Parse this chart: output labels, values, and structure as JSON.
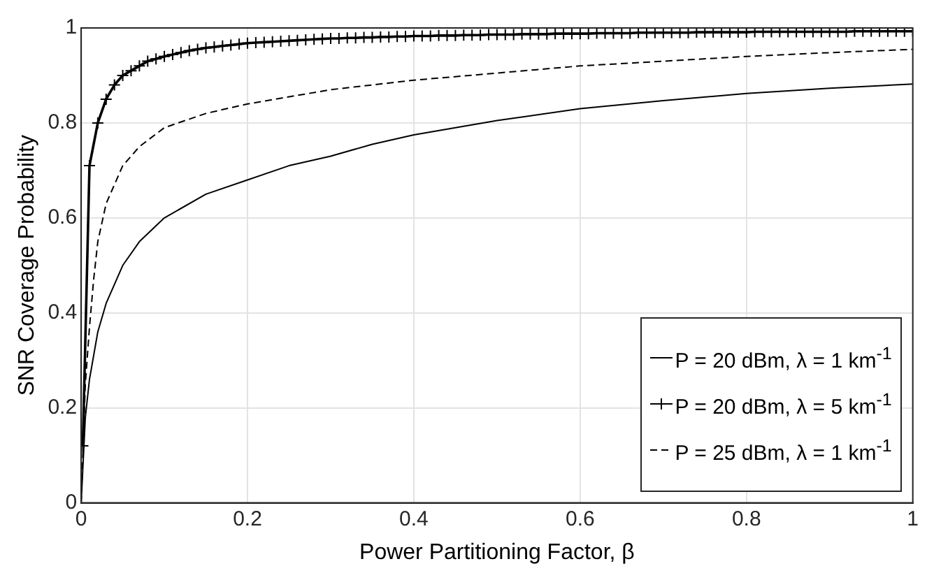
{
  "chart_data": {
    "type": "line",
    "xlabel": "Power Partitioning Factor, β",
    "ylabel": "SNR Coverage Probability",
    "xlim": [
      0,
      1
    ],
    "ylim": [
      0,
      1
    ],
    "xticks": [
      0,
      0.2,
      0.4,
      0.6,
      0.8,
      1
    ],
    "yticks": [
      0,
      0.2,
      0.4,
      0.6,
      0.8,
      1
    ],
    "grid": true,
    "legend": "bottom right",
    "series": [
      {
        "name": "P = 20 dBm, λ = 1 km$^{-1}$",
        "color": "#000000",
        "line_style": "solid",
        "marker": "none",
        "x": [
          0,
          0.005,
          0.01,
          0.02,
          0.03,
          0.05,
          0.07,
          0.1,
          0.15,
          0.2,
          0.25,
          0.3,
          0.35,
          0.4,
          0.5,
          0.6,
          0.7,
          0.8,
          0.9,
          1
        ],
        "values": [
          0,
          0.18,
          0.26,
          0.36,
          0.42,
          0.5,
          0.55,
          0.6,
          0.65,
          0.68,
          0.71,
          0.73,
          0.755,
          0.775,
          0.805,
          0.83,
          0.847,
          0.862,
          0.873,
          0.882
        ]
      },
      {
        "name": "P = 20 dBm, λ = 5 km$^{-1}$",
        "color": "#000000",
        "line_style": "solid",
        "marker": "cross",
        "x": [
          0.002,
          0.01,
          0.02,
          0.03,
          0.04,
          0.05,
          0.06,
          0.07,
          0.08,
          0.09,
          0.1,
          0.11,
          0.12,
          0.13,
          0.14,
          0.15,
          0.16,
          0.17,
          0.18,
          0.19,
          0.2,
          0.21,
          0.22,
          0.23,
          0.24,
          0.25,
          0.26,
          0.27,
          0.28,
          0.29,
          0.3,
          0.31,
          0.32,
          0.33,
          0.34,
          0.35,
          0.36,
          0.37,
          0.38,
          0.39,
          0.4,
          0.41,
          0.42,
          0.43,
          0.44,
          0.45,
          0.46,
          0.47,
          0.48,
          0.49,
          0.5,
          0.51,
          0.52,
          0.53,
          0.54,
          0.55,
          0.56,
          0.57,
          0.58,
          0.59,
          0.6,
          0.61,
          0.62,
          0.63,
          0.64,
          0.65,
          0.66,
          0.67,
          0.68,
          0.69,
          0.7,
          0.71,
          0.72,
          0.73,
          0.74,
          0.75,
          0.76,
          0.77,
          0.78,
          0.79,
          0.8,
          0.81,
          0.82,
          0.83,
          0.84,
          0.85,
          0.86,
          0.87,
          0.88,
          0.89,
          0.9,
          0.91,
          0.92,
          0.93,
          0.94,
          0.95,
          0.96,
          0.97,
          0.98,
          0.99,
          1
        ],
        "values": [
          0.12,
          0.71,
          0.8,
          0.85,
          0.88,
          0.9,
          0.91,
          0.92,
          0.93,
          0.935,
          0.94,
          0.944,
          0.948,
          0.952,
          0.955,
          0.958,
          0.96,
          0.962,
          0.964,
          0.966,
          0.968,
          0.969,
          0.97,
          0.971,
          0.972,
          0.973,
          0.974,
          0.975,
          0.976,
          0.977,
          0.978,
          0.978,
          0.979,
          0.979,
          0.98,
          0.98,
          0.981,
          0.981,
          0.982,
          0.982,
          0.983,
          0.983,
          0.983,
          0.984,
          0.984,
          0.984,
          0.985,
          0.985,
          0.985,
          0.986,
          0.986,
          0.986,
          0.986,
          0.987,
          0.987,
          0.987,
          0.987,
          0.988,
          0.988,
          0.988,
          0.988,
          0.988,
          0.989,
          0.989,
          0.989,
          0.989,
          0.989,
          0.99,
          0.99,
          0.99,
          0.99,
          0.99,
          0.99,
          0.99,
          0.991,
          0.991,
          0.991,
          0.991,
          0.991,
          0.991,
          0.991,
          0.992,
          0.992,
          0.992,
          0.992,
          0.992,
          0.992,
          0.992,
          0.992,
          0.992,
          0.992,
          0.992,
          0.992,
          0.993,
          0.993,
          0.993,
          0.993,
          0.993,
          0.993,
          0.993,
          0.993
        ]
      },
      {
        "name": "P = 25 dBm, λ = 1 km$^{-1}$",
        "color": "#000000",
        "line_style": "dashed",
        "marker": "none",
        "x": [
          0,
          0.005,
          0.01,
          0.015,
          0.02,
          0.03,
          0.05,
          0.07,
          0.1,
          0.15,
          0.2,
          0.3,
          0.4,
          0.5,
          0.6,
          0.7,
          0.8,
          0.9,
          1
        ],
        "values": [
          0,
          0.25,
          0.37,
          0.47,
          0.55,
          0.63,
          0.71,
          0.75,
          0.79,
          0.82,
          0.84,
          0.87,
          0.89,
          0.905,
          0.92,
          0.93,
          0.94,
          0.948,
          0.955
        ]
      }
    ]
  }
}
